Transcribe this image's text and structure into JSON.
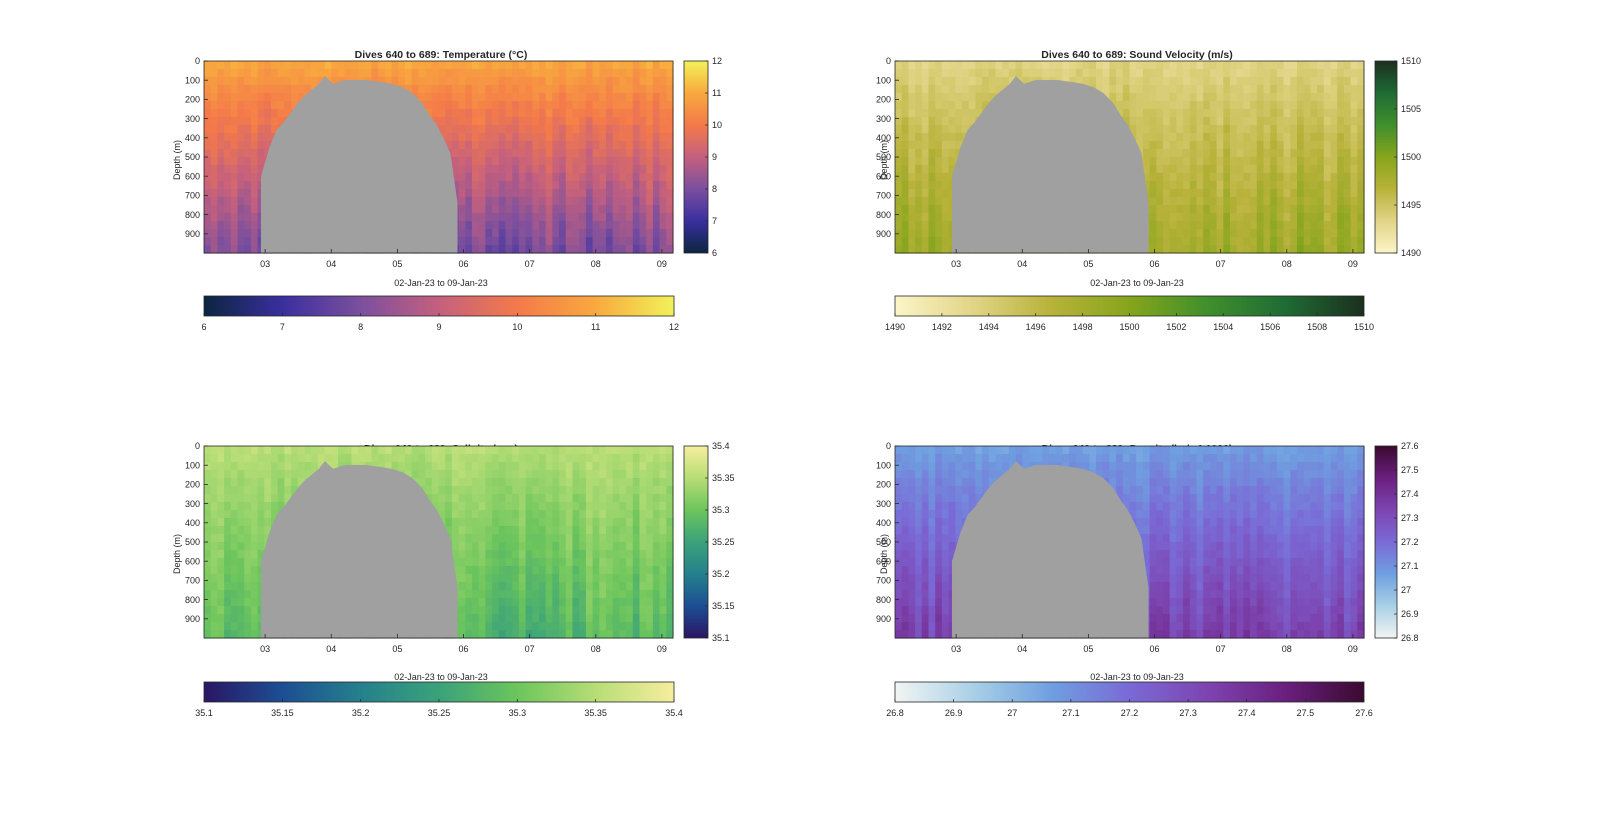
{
  "figure": {
    "x_label": "02-Jan-23 to 09-Jan-23",
    "y_label": "Depth (m)"
  },
  "chart_data": [
    {
      "type": "heatmap",
      "title": "Dives 640 to 689: Temperature (°C)",
      "xlabel": "02-Jan-23 to 09-Jan-23",
      "ylabel": "Depth (m)",
      "x_ticks": [
        "03",
        "04",
        "05",
        "06",
        "07",
        "08",
        "09"
      ],
      "y_ticks": [
        0,
        100,
        200,
        300,
        400,
        500,
        600,
        700,
        800,
        900
      ],
      "xlim": [
        "2023-01-02",
        "2023-01-09"
      ],
      "ylim": [
        1000,
        0
      ],
      "colormap": [
        "#0b2540",
        "#3a2f9f",
        "#7b4f9e",
        "#c4607e",
        "#f47a4a",
        "#f8a93e",
        "#f2f25a"
      ],
      "colorbar_range": [
        6,
        12
      ],
      "colorbar_ticks": [
        6,
        7,
        8,
        9,
        10,
        11,
        12
      ],
      "profile": {
        "surface": 10.9,
        "deep": 8.0
      },
      "masked_color": "#a0a0a0"
    },
    {
      "type": "heatmap",
      "title": "Dives 640 to 689: Sound Velocity (m/s)",
      "xlabel": "02-Jan-23 to 09-Jan-23",
      "ylabel": "Depth (m)",
      "x_ticks": [
        "03",
        "04",
        "05",
        "06",
        "07",
        "08",
        "09"
      ],
      "y_ticks": [
        0,
        100,
        200,
        300,
        400,
        500,
        600,
        700,
        800,
        900
      ],
      "xlim": [
        "2023-01-02",
        "2023-01-09"
      ],
      "ylim": [
        1000,
        0
      ],
      "colormap": [
        "#fbf5c8",
        "#e2d486",
        "#b8b23a",
        "#86a51c",
        "#3f8f2c",
        "#1f6b35",
        "#1b2f1e"
      ],
      "colorbar_range": [
        1490,
        1510
      ],
      "colorbar_ticks": [
        1490,
        1495,
        1500,
        1505,
        1510
      ],
      "bottom_colorbar_ticks": [
        1490,
        1492,
        1494,
        1496,
        1498,
        1500,
        1502,
        1504,
        1506,
        1508,
        1510
      ],
      "profile": {
        "surface": 1493.5,
        "deep": 1498.5
      },
      "masked_color": "#a0a0a0"
    },
    {
      "type": "heatmap",
      "title": "Dives 640 to 689: Salinity (psu)",
      "xlabel": "02-Jan-23 to 09-Jan-23",
      "ylabel": "Depth (m)",
      "x_ticks": [
        "03",
        "04",
        "05",
        "06",
        "07",
        "08",
        "09"
      ],
      "y_ticks": [
        0,
        100,
        200,
        300,
        400,
        500,
        600,
        700,
        800,
        900
      ],
      "xlim": [
        "2023-01-02",
        "2023-01-09"
      ],
      "ylim": [
        1000,
        0
      ],
      "colormap": [
        "#2a1664",
        "#1d4e94",
        "#25808c",
        "#3aa27a",
        "#6cc55c",
        "#b7dd76",
        "#f7ee9e"
      ],
      "colorbar_range": [
        35.1,
        35.4
      ],
      "colorbar_ticks": [
        35.1,
        35.15,
        35.2,
        35.25,
        35.3,
        35.35,
        35.4
      ],
      "profile": {
        "surface": 35.35,
        "deep": 35.28
      },
      "masked_color": "#a0a0a0"
    },
    {
      "type": "heatmap",
      "title": "Dives 640 to 689: Density (kg/m³-1000)",
      "xlabel": "02-Jan-23 to 09-Jan-23",
      "ylabel": "Depth (m)",
      "x_ticks": [
        "03",
        "04",
        "05",
        "06",
        "07",
        "08",
        "09"
      ],
      "y_ticks": [
        0,
        100,
        200,
        300,
        400,
        500,
        600,
        700,
        800,
        900
      ],
      "xlim": [
        "2023-01-02",
        "2023-01-09"
      ],
      "ylim": [
        1000,
        0
      ],
      "colormap": [
        "#f2f5f3",
        "#a9d0e6",
        "#6f9fe0",
        "#7a6ad6",
        "#7d44b0",
        "#6a1f7e",
        "#3a0a30"
      ],
      "colorbar_range": [
        26.8,
        27.6
      ],
      "colorbar_ticks": [
        26.8,
        26.9,
        27,
        27.1,
        27.2,
        27.3,
        27.4,
        27.5,
        27.6
      ],
      "profile": {
        "surface": 27.07,
        "deep": 27.33
      },
      "masked_color": "#a0a0a0"
    }
  ]
}
